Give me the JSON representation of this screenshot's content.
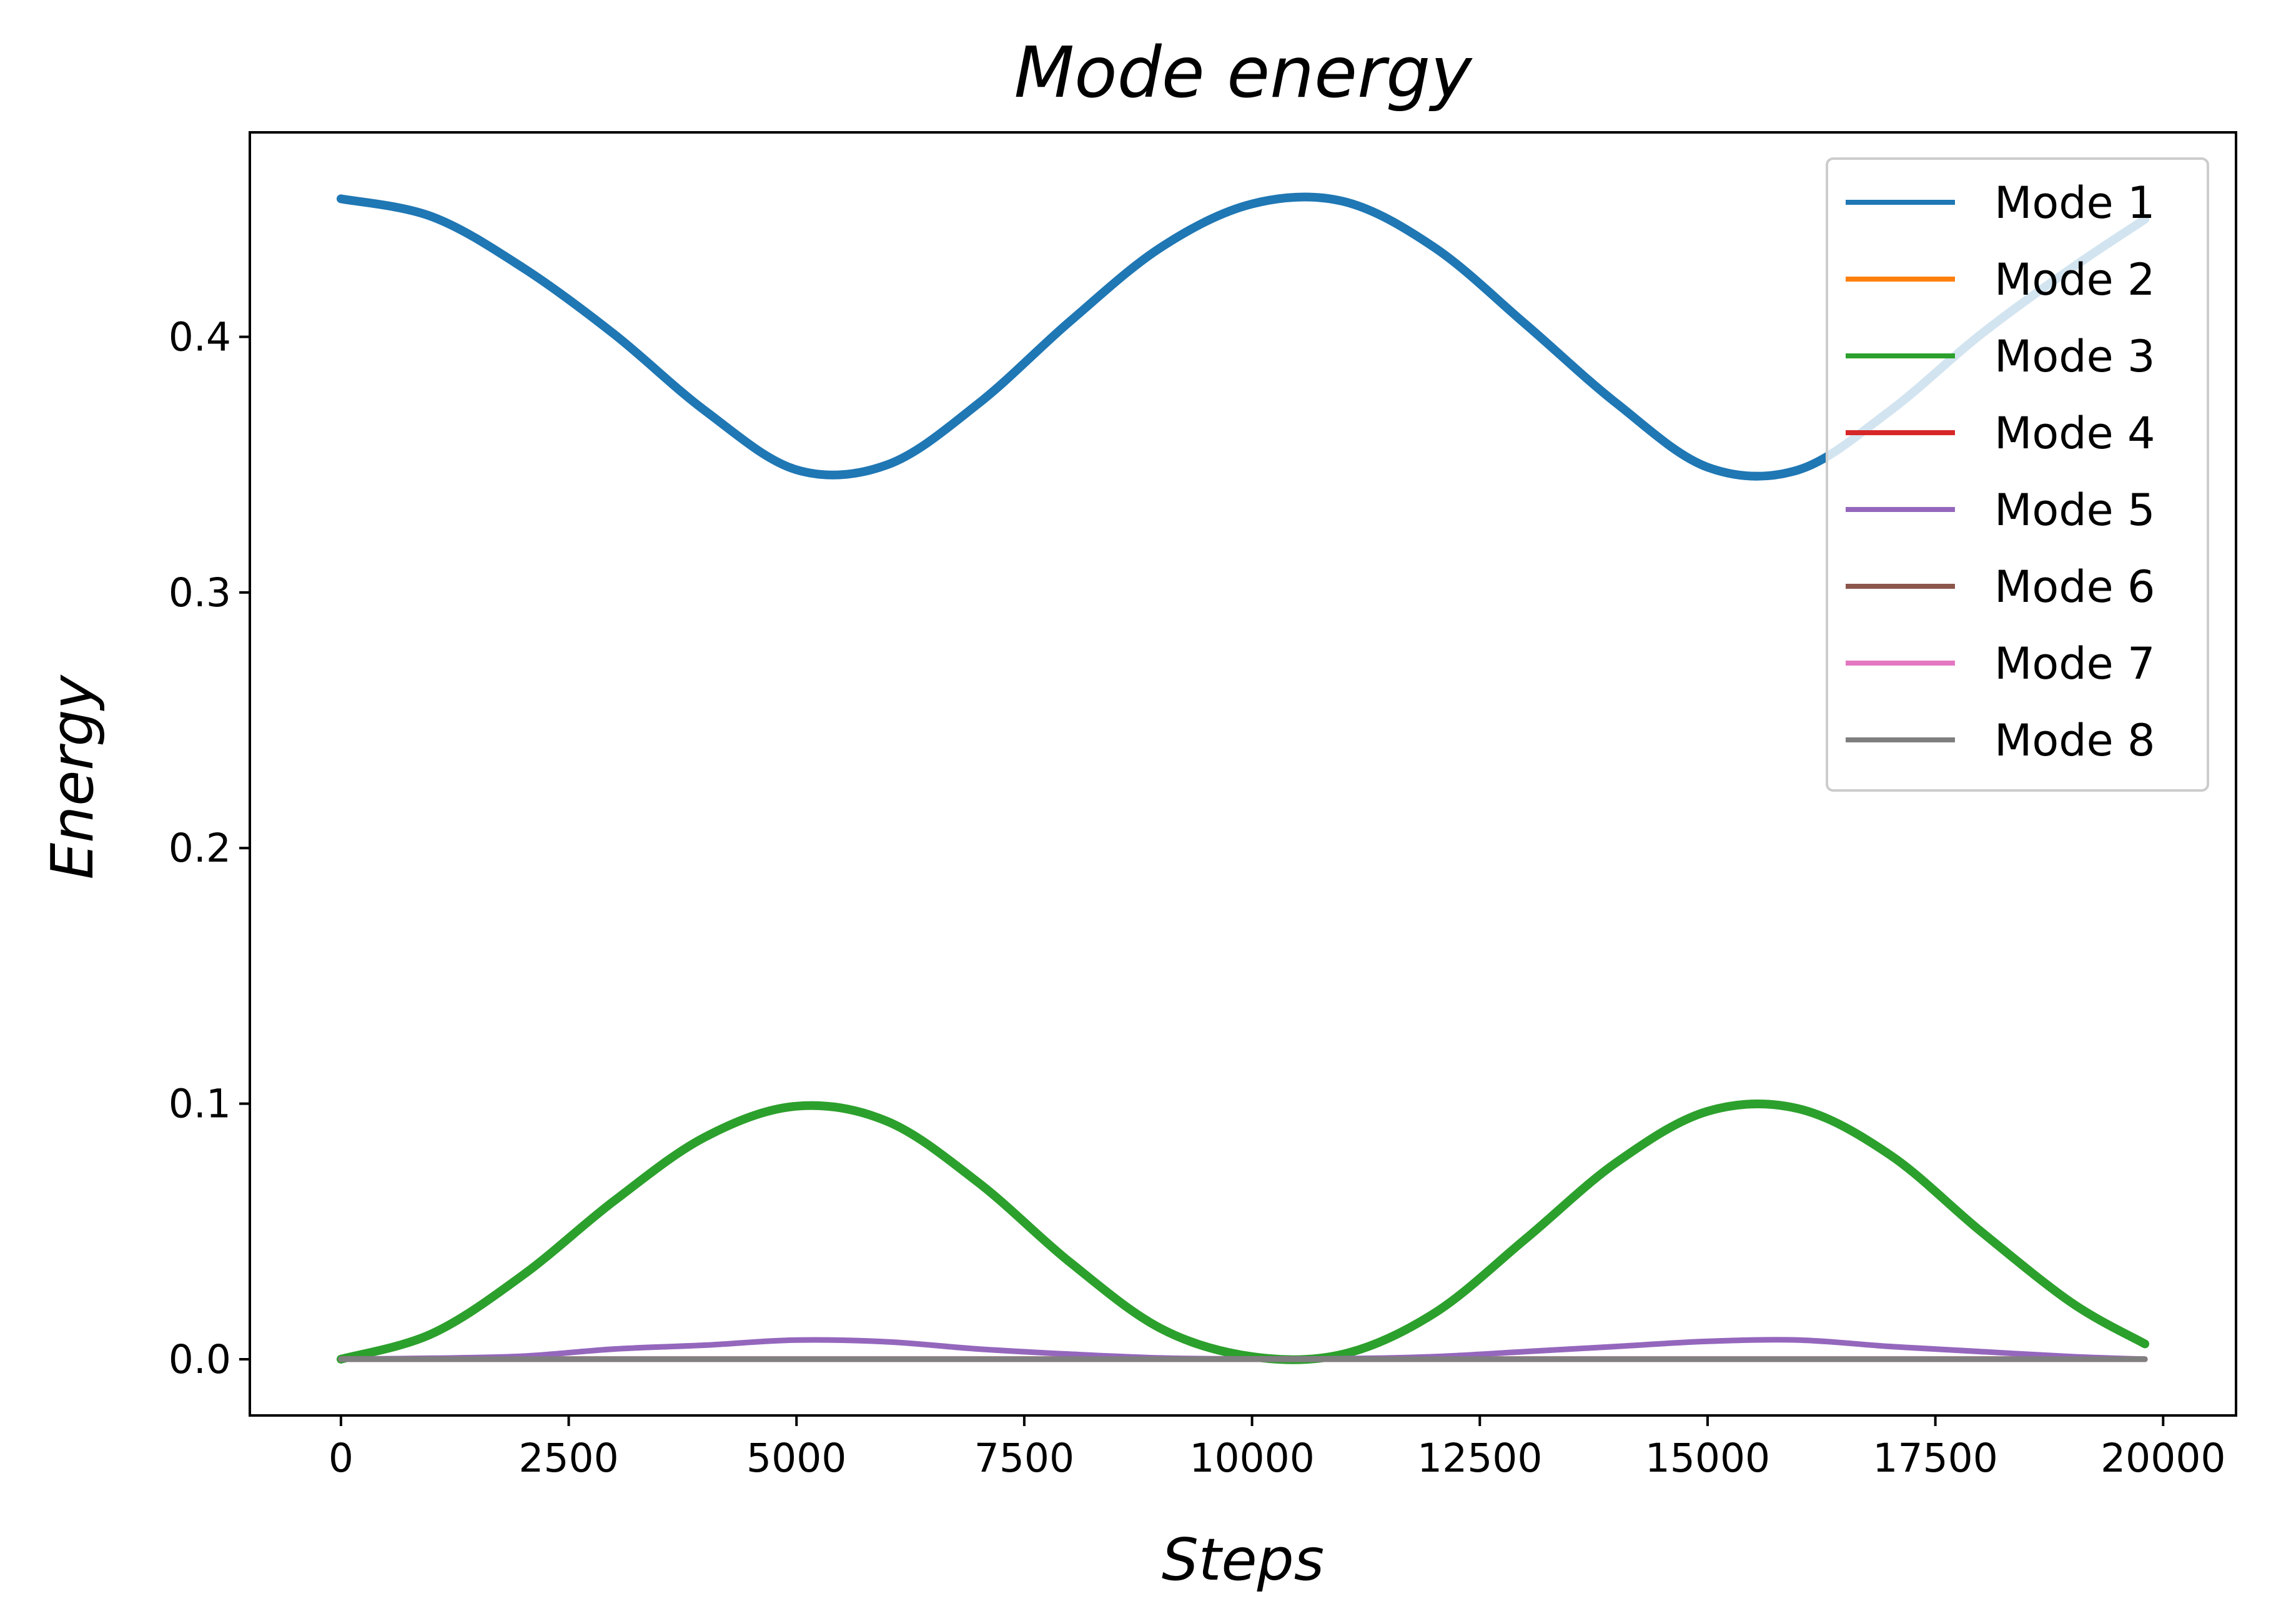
{
  "chart_data": {
    "type": "line",
    "title": "Mode energy",
    "xlabel": "Steps",
    "ylabel": "Energy",
    "xlim": [
      -1000,
      20800
    ],
    "ylim": [
      -0.022,
      0.48
    ],
    "xticks": [
      0,
      2500,
      5000,
      7500,
      10000,
      12500,
      15000,
      17500,
      20000
    ],
    "xtick_labels": [
      "0",
      "2500",
      "5000",
      "7500",
      "10000",
      "12500",
      "15000",
      "17500",
      "20000"
    ],
    "yticks": [
      0.0,
      0.1,
      0.2,
      0.3,
      0.4
    ],
    "ytick_labels": [
      "0.0",
      "0.1",
      "0.2",
      "0.3",
      "0.4"
    ],
    "grid": false,
    "legend_position": "top-right",
    "x": [
      0,
      1000,
      2000,
      3000,
      4000,
      5000,
      6000,
      7000,
      8000,
      9000,
      10000,
      11000,
      12000,
      13000,
      14000,
      15000,
      16000,
      17000,
      18000,
      19000,
      19800
    ],
    "series": [
      {
        "name": "Mode 1",
        "color": "#1f77b4",
        "values": [
          0.454,
          0.447,
          0.427,
          0.401,
          0.371,
          0.348,
          0.35,
          0.374,
          0.406,
          0.435,
          0.452,
          0.453,
          0.435,
          0.405,
          0.374,
          0.349,
          0.348,
          0.371,
          0.401,
          0.427,
          0.446
        ]
      },
      {
        "name": "Mode 2",
        "color": "#ff7f0e",
        "values": [
          0,
          0,
          0,
          0,
          0,
          0,
          0,
          0,
          0,
          0,
          0,
          0,
          0,
          0,
          0,
          0,
          0,
          0,
          0,
          0,
          0
        ]
      },
      {
        "name": "Mode 3",
        "color": "#2ca02c",
        "values": [
          0.0,
          0.01,
          0.033,
          0.062,
          0.087,
          0.099,
          0.093,
          0.069,
          0.038,
          0.012,
          0.001,
          0.002,
          0.018,
          0.047,
          0.077,
          0.097,
          0.098,
          0.08,
          0.05,
          0.022,
          0.006
        ]
      },
      {
        "name": "Mode 4",
        "color": "#d62728",
        "values": [
          0,
          0,
          0,
          0,
          0,
          0,
          0,
          0,
          0,
          0,
          0,
          0,
          0,
          0,
          0,
          0,
          0,
          0,
          0,
          0,
          0
        ]
      },
      {
        "name": "Mode 5",
        "color": "#9467bd",
        "values": [
          0.0,
          0.0004,
          0.0012,
          0.004,
          0.0055,
          0.0075,
          0.0068,
          0.004,
          0.002,
          0.0005,
          0.0001,
          0.0002,
          0.001,
          0.003,
          0.005,
          0.007,
          0.0075,
          0.005,
          0.003,
          0.001,
          0.0
        ]
      },
      {
        "name": "Mode 6",
        "color": "#8c564b",
        "values": [
          0,
          0,
          0,
          0,
          0,
          0,
          0,
          0,
          0,
          0,
          0,
          0,
          0,
          0,
          0,
          0,
          0,
          0,
          0,
          0,
          0
        ]
      },
      {
        "name": "Mode 7",
        "color": "#e377c2",
        "values": [
          0,
          0,
          0,
          0,
          0,
          0,
          0,
          0,
          0,
          0,
          0,
          0,
          0,
          0,
          0,
          0,
          0,
          0,
          0,
          0,
          0
        ]
      },
      {
        "name": "Mode 8",
        "color": "#7f7f7f",
        "values": [
          0,
          0,
          0,
          0,
          0,
          0,
          0,
          0,
          0,
          0,
          0,
          0,
          0,
          0,
          0,
          0,
          0,
          0,
          0,
          0,
          0
        ]
      }
    ]
  }
}
